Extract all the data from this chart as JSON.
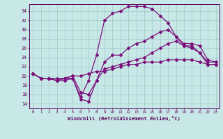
{
  "xlabel": "Windchill (Refroidissement éolien,°C)",
  "xlim": [
    -0.5,
    23.5
  ],
  "ylim": [
    13.0,
    35.5
  ],
  "yticks": [
    14,
    16,
    18,
    20,
    22,
    24,
    26,
    28,
    30,
    32,
    34
  ],
  "xticks": [
    0,
    1,
    2,
    3,
    4,
    5,
    6,
    7,
    8,
    9,
    10,
    11,
    12,
    13,
    14,
    15,
    16,
    17,
    18,
    19,
    20,
    21,
    22,
    23
  ],
  "bg_color": "#c8e8e8",
  "grid_color": "#a0c8c8",
  "line_color": "#7b107b",
  "line_width": 0.9,
  "marker": "D",
  "marker_size": 2.0,
  "series": [
    [
      20.5,
      19.5,
      19.5,
      19.0,
      19.0,
      19.5,
      15.5,
      19.0,
      24.5,
      32.0,
      33.5,
      34.0,
      35.0,
      35.0,
      35.0,
      34.5,
      33.0,
      31.5,
      28.5,
      26.5,
      26.5,
      25.0,
      23.0,
      23.0
    ],
    [
      20.5,
      19.5,
      19.5,
      19.0,
      19.5,
      19.5,
      15.0,
      14.5,
      19.0,
      23.0,
      24.5,
      24.5,
      26.0,
      27.0,
      27.5,
      28.5,
      29.5,
      30.0,
      28.5,
      27.0,
      27.0,
      26.5,
      23.5,
      23.0
    ],
    [
      20.5,
      19.5,
      19.5,
      19.0,
      19.5,
      20.0,
      16.5,
      16.0,
      19.0,
      21.5,
      22.0,
      22.5,
      23.0,
      23.5,
      24.0,
      25.0,
      26.0,
      27.0,
      27.5,
      26.5,
      26.0,
      25.0,
      22.5,
      22.5
    ],
    [
      20.5,
      19.5,
      19.5,
      19.5,
      19.5,
      20.0,
      20.0,
      20.5,
      21.0,
      21.0,
      21.5,
      22.0,
      22.5,
      22.5,
      23.0,
      23.0,
      23.0,
      23.5,
      23.5,
      23.5,
      23.5,
      23.0,
      22.5,
      22.5
    ]
  ]
}
